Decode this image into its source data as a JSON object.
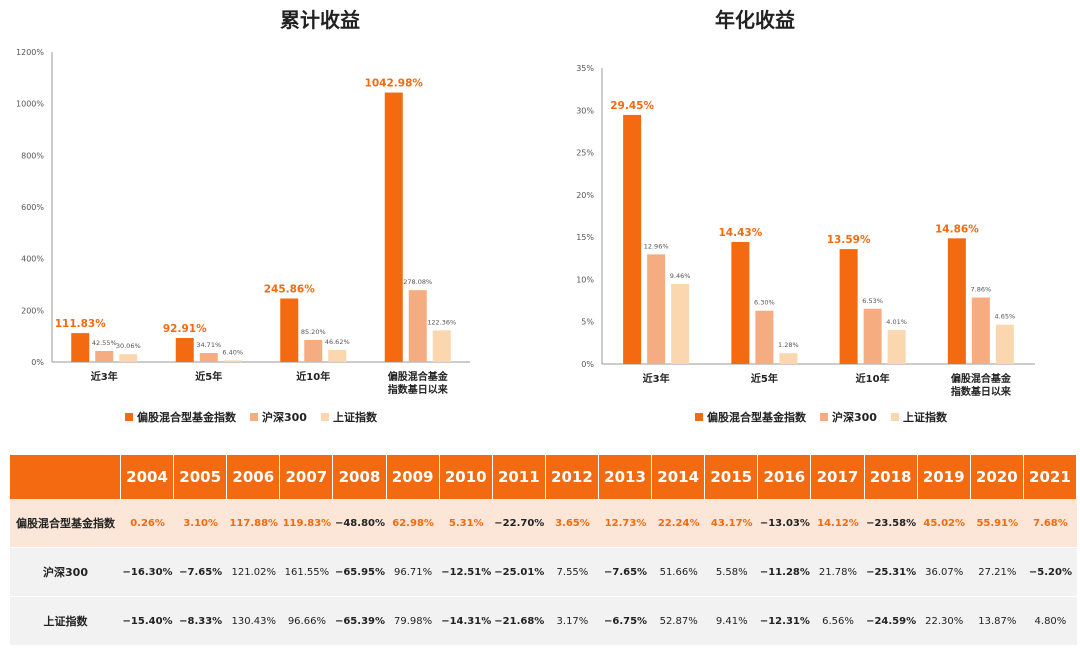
{
  "colors": {
    "primary": "#F36A10",
    "secondary": "#F5AC80",
    "tertiary": "#FAD7AE",
    "label_highlight": "#F36A10"
  },
  "legend": [
    "偏股混合型基金指数",
    "沪深300",
    "上证指数"
  ],
  "chart_data": [
    {
      "type": "bar",
      "title": "累计收益",
      "categories": [
        [
          "近3年"
        ],
        [
          "近5年"
        ],
        [
          "近10年"
        ],
        [
          "偏股混合基金",
          "指数基日以来"
        ]
      ],
      "series": [
        {
          "name": "偏股混合型基金指数",
          "values": [
            111.83,
            92.91,
            245.86,
            1042.98
          ],
          "labels": [
            "111.83%",
            "92.91%",
            "245.86%",
            "1042.98%"
          ]
        },
        {
          "name": "沪深300",
          "values": [
            42.55,
            34.71,
            85.2,
            278.08
          ],
          "labels": [
            "42.55%",
            "34.71%",
            "85.20%",
            "278.08%"
          ]
        },
        {
          "name": "上证指数",
          "values": [
            30.06,
            6.4,
            46.62,
            122.36
          ],
          "labels": [
            "30.06%",
            "6.40%",
            "46.62%",
            "122.36%"
          ]
        }
      ],
      "yticks": [
        "0%",
        "200%",
        "400%",
        "600%",
        "800%",
        "1000%",
        "1200%"
      ],
      "ylim": [
        0,
        1200
      ],
      "grid": false,
      "legend_position": "bottom"
    },
    {
      "type": "bar",
      "title": "年化收益",
      "categories": [
        [
          "近3年"
        ],
        [
          "近5年"
        ],
        [
          "近10年"
        ],
        [
          "偏股混合基金",
          "指数基日以来"
        ]
      ],
      "series": [
        {
          "name": "偏股混合型基金指数",
          "values": [
            29.45,
            14.43,
            13.59,
            14.86
          ],
          "labels": [
            "29.45%",
            "14.43%",
            "13.59%",
            "14.86%"
          ]
        },
        {
          "name": "沪深300",
          "values": [
            12.96,
            6.3,
            6.53,
            7.86
          ],
          "labels": [
            "12.96%",
            "6.30%",
            "6.53%",
            "7.86%"
          ]
        },
        {
          "name": "上证指数",
          "values": [
            9.46,
            1.28,
            4.01,
            4.65
          ],
          "labels": [
            "9.46%",
            "1.28%",
            "4.01%",
            "4.65%"
          ]
        }
      ],
      "yticks": [
        "0%",
        "5%",
        "10%",
        "15%",
        "20%",
        "25%",
        "30%",
        "35%"
      ],
      "ylim": [
        0,
        35
      ],
      "grid": false,
      "legend_position": "bottom"
    },
    {
      "type": "table",
      "columns": [
        "2004",
        "2005",
        "2006",
        "2007",
        "2008",
        "2009",
        "2010",
        "2011",
        "2012",
        "2013",
        "2014",
        "2015",
        "2016",
        "2017",
        "2018",
        "2019",
        "2020",
        "2021"
      ],
      "rows": [
        {
          "name": "偏股混合型基金指数",
          "values": [
            "0.26%",
            "3.10%",
            "117.88%",
            "119.83%",
            "−48.80%",
            "62.98%",
            "5.31%",
            "−22.70%",
            "3.65%",
            "12.73%",
            "22.24%",
            "43.17%",
            "−13.03%",
            "14.12%",
            "−23.58%",
            "45.02%",
            "55.91%",
            "7.68%"
          ]
        },
        {
          "name": "沪深300",
          "values": [
            "−16.30%",
            "−7.65%",
            "121.02%",
            "161.55%",
            "−65.95%",
            "96.71%",
            "−12.51%",
            "−25.01%",
            "7.55%",
            "−7.65%",
            "51.66%",
            "5.58%",
            "−11.28%",
            "21.78%",
            "−25.31%",
            "36.07%",
            "27.21%",
            "−5.20%"
          ]
        },
        {
          "name": "上证指数",
          "values": [
            "−15.40%",
            "−8.33%",
            "130.43%",
            "96.66%",
            "−65.39%",
            "79.98%",
            "−14.31%",
            "−21.68%",
            "3.17%",
            "−6.75%",
            "52.87%",
            "9.41%",
            "−12.31%",
            "6.56%",
            "−24.59%",
            "22.30%",
            "13.87%",
            "4.80%"
          ]
        }
      ]
    }
  ]
}
